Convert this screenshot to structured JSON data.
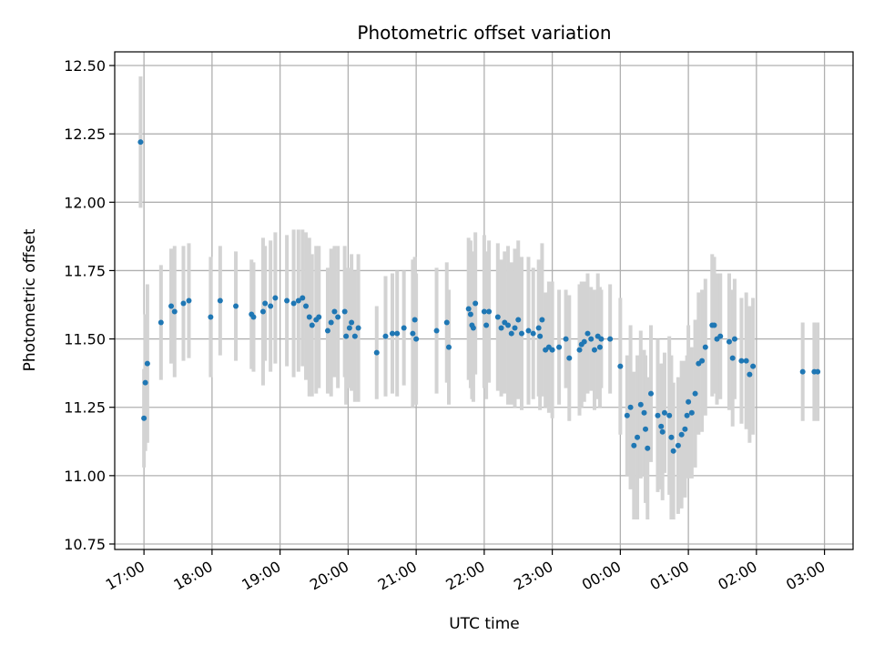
{
  "chart_data": {
    "type": "scatter",
    "title": "Photometric offset variation",
    "xlabel": "UTC time",
    "ylabel": "Photometric offset",
    "grid": true,
    "xlim_hours": [
      16.57,
      27.42
    ],
    "ylim": [
      10.73,
      12.55
    ],
    "y_ticks": [
      "10.75",
      "11.00",
      "11.25",
      "11.50",
      "11.75",
      "12.00",
      "12.25",
      "12.50"
    ],
    "x_ticks": [
      {
        "h": 17,
        "label": "17:00"
      },
      {
        "h": 18,
        "label": "18:00"
      },
      {
        "h": 19,
        "label": "19:00"
      },
      {
        "h": 20,
        "label": "20:00"
      },
      {
        "h": 21,
        "label": "21:00"
      },
      {
        "h": 22,
        "label": "22:00"
      },
      {
        "h": 23,
        "label": "23:00"
      },
      {
        "h": 24,
        "label": "00:00"
      },
      {
        "h": 25,
        "label": "01:00"
      },
      {
        "h": 26,
        "label": "02:00"
      },
      {
        "h": 27,
        "label": "03:00"
      }
    ],
    "colors": {
      "marker": "#1f77b4",
      "errorbar": "#d3d3d3",
      "grid": "#b0b0b0"
    },
    "series": [
      {
        "name": "offset",
        "points": [
          [
            16.95,
            12.22,
            0.24
          ],
          [
            17.0,
            11.21,
            0.18
          ],
          [
            17.02,
            11.34,
            0.25
          ],
          [
            17.05,
            11.41,
            0.29
          ],
          [
            17.25,
            11.56,
            0.21
          ],
          [
            17.4,
            11.62,
            0.21
          ],
          [
            17.45,
            11.6,
            0.24
          ],
          [
            17.58,
            11.63,
            0.21
          ],
          [
            17.66,
            11.64,
            0.21
          ],
          [
            17.98,
            11.58,
            0.22
          ],
          [
            18.12,
            11.64,
            0.2
          ],
          [
            18.35,
            11.62,
            0.2
          ],
          [
            18.58,
            11.59,
            0.2
          ],
          [
            18.61,
            11.58,
            0.2
          ],
          [
            18.75,
            11.6,
            0.27
          ],
          [
            18.78,
            11.63,
            0.21
          ],
          [
            18.86,
            11.62,
            0.24
          ],
          [
            18.93,
            11.65,
            0.24
          ],
          [
            19.1,
            11.64,
            0.24
          ],
          [
            19.2,
            11.63,
            0.27
          ],
          [
            19.27,
            11.64,
            0.26
          ],
          [
            19.33,
            11.65,
            0.25
          ],
          [
            19.38,
            11.62,
            0.27
          ],
          [
            19.43,
            11.58,
            0.29
          ],
          [
            19.47,
            11.55,
            0.26
          ],
          [
            19.53,
            11.57,
            0.27
          ],
          [
            19.57,
            11.58,
            0.26
          ],
          [
            19.7,
            11.53,
            0.23
          ],
          [
            19.75,
            11.56,
            0.27
          ],
          [
            19.8,
            11.6,
            0.24
          ],
          [
            19.85,
            11.58,
            0.26
          ],
          [
            19.95,
            11.6,
            0.24
          ],
          [
            19.97,
            11.51,
            0.25
          ],
          [
            20.02,
            11.54,
            0.22
          ],
          [
            20.05,
            11.56,
            0.25
          ],
          [
            20.1,
            11.51,
            0.24
          ],
          [
            20.15,
            11.54,
            0.27
          ],
          [
            20.42,
            11.45,
            0.17
          ],
          [
            20.55,
            11.51,
            0.22
          ],
          [
            20.65,
            11.52,
            0.22
          ],
          [
            20.72,
            11.52,
            0.23
          ],
          [
            20.82,
            11.54,
            0.21
          ],
          [
            20.95,
            11.52,
            0.27
          ],
          [
            20.98,
            11.57,
            0.23
          ],
          [
            21.0,
            11.5,
            0.24
          ],
          [
            21.3,
            11.53,
            0.23
          ],
          [
            21.45,
            11.56,
            0.22
          ],
          [
            21.48,
            11.47,
            0.21
          ],
          [
            21.77,
            11.61,
            0.26
          ],
          [
            21.8,
            11.59,
            0.27
          ],
          [
            21.82,
            11.55,
            0.27
          ],
          [
            21.84,
            11.54,
            0.27
          ],
          [
            21.87,
            11.63,
            0.26
          ],
          [
            22.0,
            11.6,
            0.28
          ],
          [
            22.03,
            11.55,
            0.27
          ],
          [
            22.07,
            11.6,
            0.26
          ],
          [
            22.2,
            11.58,
            0.27
          ],
          [
            22.25,
            11.54,
            0.25
          ],
          [
            22.3,
            11.56,
            0.26
          ],
          [
            22.35,
            11.55,
            0.29
          ],
          [
            22.4,
            11.52,
            0.26
          ],
          [
            22.45,
            11.54,
            0.29
          ],
          [
            22.5,
            11.57,
            0.29
          ],
          [
            22.55,
            11.52,
            0.28
          ],
          [
            22.65,
            11.53,
            0.27
          ],
          [
            22.72,
            11.52,
            0.24
          ],
          [
            22.8,
            11.54,
            0.25
          ],
          [
            22.82,
            11.51,
            0.27
          ],
          [
            22.85,
            11.57,
            0.28
          ],
          [
            22.9,
            11.46,
            0.21
          ],
          [
            22.95,
            11.47,
            0.24
          ],
          [
            23.0,
            11.46,
            0.25
          ],
          [
            23.1,
            11.47,
            0.21
          ],
          [
            23.2,
            11.5,
            0.18
          ],
          [
            23.25,
            11.43,
            0.23
          ],
          [
            23.4,
            11.46,
            0.24
          ],
          [
            23.43,
            11.48,
            0.23
          ],
          [
            23.47,
            11.49,
            0.22
          ],
          [
            23.52,
            11.52,
            0.22
          ],
          [
            23.57,
            11.5,
            0.19
          ],
          [
            23.62,
            11.46,
            0.22
          ],
          [
            23.67,
            11.51,
            0.23
          ],
          [
            23.7,
            11.47,
            0.22
          ],
          [
            23.72,
            11.5,
            0.18
          ],
          [
            23.85,
            11.5,
            0.2
          ],
          [
            24.0,
            11.4,
            0.25
          ],
          [
            24.1,
            11.22,
            0.22
          ],
          [
            24.15,
            11.25,
            0.3
          ],
          [
            24.2,
            11.11,
            0.27
          ],
          [
            24.25,
            11.14,
            0.3
          ],
          [
            24.3,
            11.26,
            0.27
          ],
          [
            24.35,
            11.23,
            0.23
          ],
          [
            24.37,
            11.17,
            0.27
          ],
          [
            24.4,
            11.1,
            0.26
          ],
          [
            24.45,
            11.3,
            0.25
          ],
          [
            24.55,
            11.22,
            0.28
          ],
          [
            24.6,
            11.18,
            0.23
          ],
          [
            24.62,
            11.16,
            0.25
          ],
          [
            24.65,
            11.23,
            0.22
          ],
          [
            24.72,
            11.22,
            0.29
          ],
          [
            24.75,
            11.14,
            0.3
          ],
          [
            24.78,
            11.09,
            0.25
          ],
          [
            24.85,
            11.11,
            0.25
          ],
          [
            24.9,
            11.15,
            0.27
          ],
          [
            24.95,
            11.17,
            0.25
          ],
          [
            24.98,
            11.22,
            0.22
          ],
          [
            25.0,
            11.27,
            0.28
          ],
          [
            25.05,
            11.23,
            0.24
          ],
          [
            25.1,
            11.3,
            0.27
          ],
          [
            25.15,
            11.41,
            0.26
          ],
          [
            25.2,
            11.42,
            0.26
          ],
          [
            25.25,
            11.47,
            0.25
          ],
          [
            25.35,
            11.55,
            0.26
          ],
          [
            25.38,
            11.55,
            0.25
          ],
          [
            25.42,
            11.5,
            0.24
          ],
          [
            25.47,
            11.51,
            0.23
          ],
          [
            25.6,
            11.49,
            0.25
          ],
          [
            25.65,
            11.43,
            0.25
          ],
          [
            25.68,
            11.5,
            0.22
          ],
          [
            25.78,
            11.42,
            0.23
          ],
          [
            25.85,
            11.42,
            0.25
          ],
          [
            25.9,
            11.37,
            0.25
          ],
          [
            25.95,
            11.4,
            0.25
          ],
          [
            26.68,
            11.38,
            0.18
          ],
          [
            26.85,
            11.38,
            0.18
          ],
          [
            26.9,
            11.38,
            0.18
          ]
        ]
      }
    ]
  }
}
